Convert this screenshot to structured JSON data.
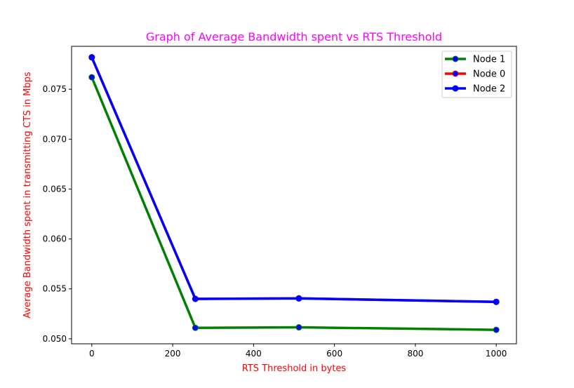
{
  "chart_data": {
    "type": "line",
    "title": "Graph of Average Bandwidth spent vs RTS Threshold",
    "xlabel": "RTS Threshold in bytes",
    "ylabel": "Average Bandwidth spent in transmitting CTS in Mbps",
    "xlim": [
      -50,
      1050
    ],
    "ylim": [
      0.0495,
      0.0793
    ],
    "xticks": [
      0,
      200,
      400,
      600,
      800,
      1000
    ],
    "xtick_labels": [
      "0",
      "200",
      "400",
      "600",
      "800",
      "1000"
    ],
    "yticks": [
      0.05,
      0.055,
      0.06,
      0.065,
      0.07,
      0.075
    ],
    "ytick_labels": [
      "0.050",
      "0.055",
      "0.060",
      "0.065",
      "0.070",
      "0.075"
    ],
    "grid": false,
    "legend_position": "top-right",
    "title_color": "#ff00ff",
    "label_color": "#ff0000",
    "series": [
      {
        "name": "Node 1",
        "color": "#008000",
        "marker_color": "#0000ff",
        "x": [
          0,
          256,
          512,
          1000
        ],
        "y": [
          0.0762,
          0.0511,
          0.05115,
          0.0509
        ]
      },
      {
        "name": "Node 0",
        "color": "#ff0000",
        "marker_color": "#0000ff",
        "x": [
          0,
          256,
          512,
          1000
        ],
        "y": [
          0.0782,
          0.054,
          0.05405,
          0.0537
        ]
      },
      {
        "name": "Node 2",
        "color": "#0000ff",
        "marker_color": "#0000ff",
        "x": [
          0,
          256,
          512,
          1000
        ],
        "y": [
          0.0782,
          0.054,
          0.05405,
          0.0537
        ]
      }
    ]
  }
}
